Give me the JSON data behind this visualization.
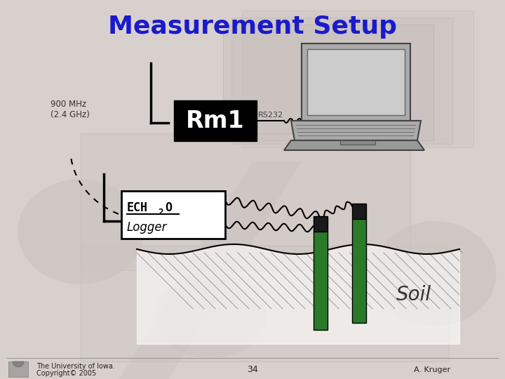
{
  "title": "Measurement Setup",
  "title_color": "#1a1acc",
  "title_fontsize": 26,
  "bg_color": "#d8d0cc",
  "rect_color": "#c8c0bc",
  "footer_text_left": "The University of Iowa.\nCopyright© 2005",
  "footer_text_center": "34",
  "footer_text_right": "A. Kruger",
  "label_900": "900 MHz",
  "label_24": "(2.4 GHz)",
  "label_rm1": "Rm1",
  "label_rs232": "RS232",
  "label_ech": "ECH",
  "label_sub": "2",
  "label_o": "O",
  "label_logger": "Logger",
  "label_soil": "Soil",
  "circle_color": "#ccc4c0",
  "probe_green": "#2a7a2a",
  "probe_black": "#1a1a1a",
  "laptop_body": "#aaaaaa",
  "laptop_screen": "#bbbbbb",
  "laptop_screen_inner": "#cccccc"
}
